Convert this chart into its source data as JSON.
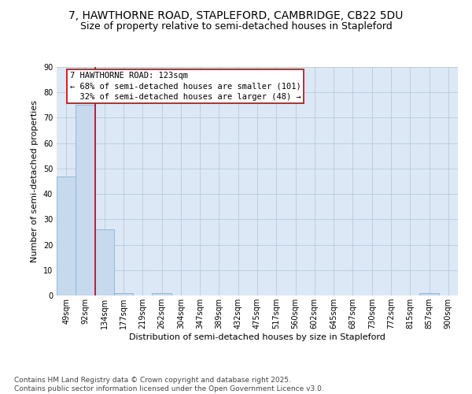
{
  "title_line1": "7, HAWTHORNE ROAD, STAPLEFORD, CAMBRIDGE, CB22 5DU",
  "title_line2": "Size of property relative to semi-detached houses in Stapleford",
  "xlabel": "Distribution of semi-detached houses by size in Stapleford",
  "ylabel": "Number of semi-detached properties",
  "categories": [
    "49sqm",
    "92sqm",
    "134sqm",
    "177sqm",
    "219sqm",
    "262sqm",
    "304sqm",
    "347sqm",
    "389sqm",
    "432sqm",
    "475sqm",
    "517sqm",
    "560sqm",
    "602sqm",
    "645sqm",
    "687sqm",
    "730sqm",
    "772sqm",
    "815sqm",
    "857sqm",
    "900sqm"
  ],
  "values": [
    47,
    75,
    26,
    1,
    0,
    1,
    0,
    0,
    0,
    0,
    0,
    0,
    0,
    0,
    0,
    0,
    0,
    0,
    0,
    1,
    0
  ],
  "bar_color": "#c6d9ed",
  "bar_edge_color": "#93b8d8",
  "vline_color": "#cc0000",
  "annotation_text": "7 HAWTHORNE ROAD: 123sqm\n← 68% of semi-detached houses are smaller (101)\n  32% of semi-detached houses are larger (48) →",
  "annotation_box_color": "#ffffff",
  "annotation_box_edge": "#cc0000",
  "ylim": [
    0,
    90
  ],
  "yticks": [
    0,
    10,
    20,
    30,
    40,
    50,
    60,
    70,
    80,
    90
  ],
  "background_color": "#dce8f5",
  "footer_text": "Contains HM Land Registry data © Crown copyright and database right 2025.\nContains public sector information licensed under the Open Government Licence v3.0.",
  "title_fontsize": 10,
  "subtitle_fontsize": 9,
  "axis_label_fontsize": 8,
  "tick_fontsize": 7,
  "annotation_fontsize": 7.5,
  "footer_fontsize": 6.5
}
